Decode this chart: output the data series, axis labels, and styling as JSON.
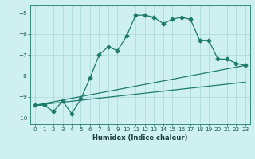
{
  "xlabel": "Humidex (Indice chaleur)",
  "bg_color": "#cff0f0",
  "line_color": "#1e7a6a",
  "grid_color": "#a8d8d8",
  "xlim": [
    -0.5,
    23.5
  ],
  "ylim": [
    -10.3,
    -4.6
  ],
  "yticks": [
    -10,
    -9,
    -8,
    -7,
    -6,
    -5
  ],
  "xticks": [
    0,
    1,
    2,
    3,
    4,
    5,
    6,
    7,
    8,
    9,
    10,
    11,
    12,
    13,
    14,
    15,
    16,
    17,
    18,
    19,
    20,
    21,
    22,
    23
  ],
  "line1_x": [
    0,
    1,
    2,
    3,
    4,
    5,
    6,
    7,
    8,
    9,
    10,
    11,
    12,
    13,
    14,
    15,
    16,
    17,
    18,
    19,
    20,
    21,
    22,
    23
  ],
  "line1_y": [
    -9.4,
    -9.4,
    -9.7,
    -9.2,
    -9.8,
    -9.1,
    -8.1,
    -7.0,
    -6.6,
    -6.8,
    -6.1,
    -5.1,
    -5.1,
    -5.2,
    -5.5,
    -5.3,
    -5.2,
    -5.3,
    -6.3,
    -6.3,
    -7.2,
    -7.2,
    -7.4,
    -7.5
  ],
  "line2_x": [
    0,
    23
  ],
  "line2_y": [
    -9.4,
    -7.5
  ],
  "line3_x": [
    0,
    23
  ],
  "line3_y": [
    -9.4,
    -8.3
  ],
  "tick_color": "#1a5c4a",
  "xlabel_color": "#1a3a3a",
  "xlabel_fontsize": 6.0,
  "tick_fontsize": 5.2,
  "linewidth": 0.9,
  "markersize": 2.5
}
